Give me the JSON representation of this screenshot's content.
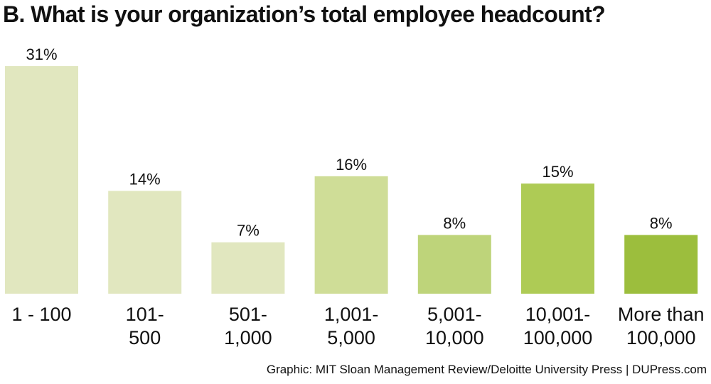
{
  "title": "B. What is your organization’s total employee headcount?",
  "source": "Graphic: MIT Sloan Management Review/Deloitte University Press  |  DUPress.com",
  "chart_data": {
    "type": "bar",
    "title": "B. What is your organization’s total employee headcount?",
    "categories": [
      [
        "1 - 100"
      ],
      [
        "101-",
        "500"
      ],
      [
        "501-",
        "1,000"
      ],
      [
        "1,001-",
        "5,000"
      ],
      [
        "5,001-",
        "10,000"
      ],
      [
        "10,001-",
        "100,000"
      ],
      [
        "More than",
        "100,000"
      ]
    ],
    "values": [
      31,
      14,
      7,
      16,
      8,
      15,
      8
    ],
    "value_labels": [
      "31%",
      "14%",
      "7%",
      "16%",
      "8%",
      "15%",
      "8%"
    ],
    "unit": "%",
    "colors": [
      "#e1e7bf",
      "#e1e7bf",
      "#e1e7bf",
      "#cfdd97",
      "#bed47a",
      "#aecb55",
      "#9cbe3d"
    ],
    "ylim": [
      0,
      31
    ],
    "grid": false,
    "legend": "none"
  }
}
